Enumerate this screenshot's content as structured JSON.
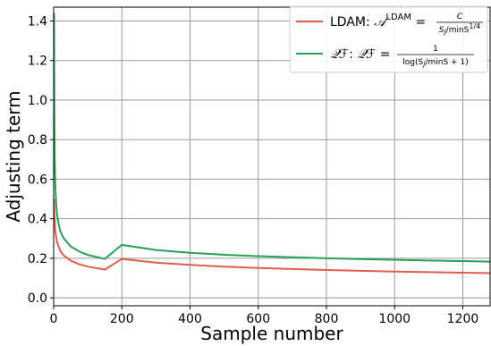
{
  "chart_data": {
    "type": "line",
    "xlabel": "Sample number",
    "ylabel": "Adjusting term",
    "xlim": [
      0,
      1280
    ],
    "ylim": [
      -0.04,
      1.47
    ],
    "x_ticks": [
      0,
      200,
      400,
      600,
      800,
      1000,
      1200
    ],
    "y_ticks": [
      0.0,
      0.2,
      0.4,
      0.6,
      0.8,
      1.0,
      1.2,
      1.4
    ],
    "grid": true,
    "legend_position": "top-right",
    "series": [
      {
        "name": "LDAM",
        "color": "#e05c4b",
        "legend": {
          "label": "LDAM: ",
          "lhs_symbol": "𝒜",
          "lhs_sup": "LDAM",
          "eq": " = ",
          "numerator": "C",
          "denominator": "S",
          "denominator_sub": "j",
          "denominator_rest": "/minS",
          "denominator_sup": "1/4"
        },
        "x": [
          1,
          2,
          5,
          10,
          20,
          30,
          50,
          75,
          100,
          150,
          200,
          300,
          400,
          500,
          600,
          700,
          800,
          900,
          1000,
          1100,
          1200,
          1280
        ],
        "y": [
          0.5,
          0.42,
          0.334,
          0.281,
          0.236,
          0.214,
          0.188,
          0.17,
          0.158,
          0.143,
          0.197,
          0.178,
          0.167,
          0.158,
          0.151,
          0.146,
          0.141,
          0.137,
          0.133,
          0.13,
          0.127,
          0.125
        ]
      },
      {
        "name": "QF",
        "color": "#27a05a",
        "legend": {
          "label_symbol": "𝒬ℱ",
          "label_colon": ": ",
          "lhs_symbol": "𝒬ℱ",
          "eq": " = ",
          "numerator": "1",
          "denominator": "log(S",
          "denominator_sub": "j",
          "denominator_rest": "/minS + 1)"
        },
        "x": [
          1,
          2,
          3,
          5,
          8,
          10,
          15,
          20,
          30,
          50,
          75,
          100,
          150,
          200,
          300,
          400,
          500,
          600,
          700,
          800,
          900,
          1000,
          1100,
          1200,
          1280
        ],
        "y": [
          1.44,
          0.91,
          0.72,
          0.56,
          0.46,
          0.42,
          0.37,
          0.335,
          0.3,
          0.26,
          0.235,
          0.217,
          0.197,
          0.268,
          0.242,
          0.228,
          0.218,
          0.211,
          0.205,
          0.2,
          0.196,
          0.192,
          0.189,
          0.186,
          0.183
        ]
      }
    ]
  }
}
